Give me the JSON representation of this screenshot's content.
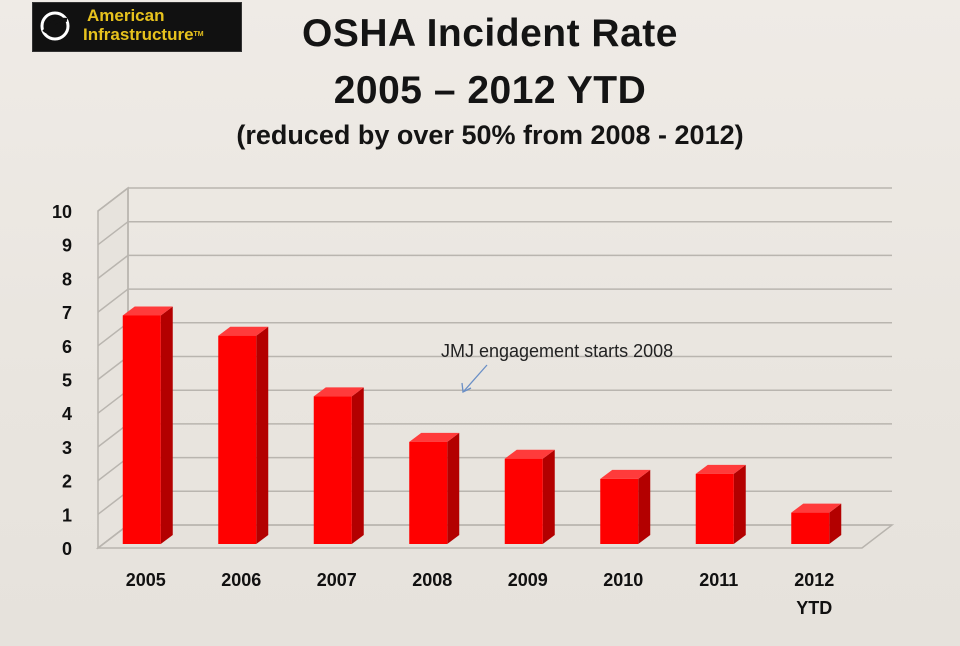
{
  "logo": {
    "line1": "American",
    "line2": "Infrastructure",
    "mark": "TM",
    "icon": "circle-swoosh-icon"
  },
  "chart_data": {
    "type": "bar",
    "title": "OSHA Incident Rate",
    "title_line2": "2005 – 2012 YTD",
    "subtitle": "(reduced by over 50% from 2008 - 2012)",
    "categories": [
      [
        "2005"
      ],
      [
        "2006"
      ],
      [
        "2007"
      ],
      [
        "2008"
      ],
      [
        "2009"
      ],
      [
        "2010"
      ],
      [
        "2011"
      ],
      [
        "2012",
        "YTD"
      ]
    ],
    "values": [
      6.9,
      6.3,
      4.5,
      3.15,
      2.65,
      2.05,
      2.2,
      1.05
    ],
    "ylim": [
      0,
      10
    ],
    "yticks": [
      "0",
      "1",
      "2",
      "3",
      "4",
      "5",
      "6",
      "7",
      "8",
      "9",
      "10"
    ],
    "grid": true,
    "bar_color": "#ff0000",
    "annotation": {
      "text": "JMJ engagement starts 2008",
      "points_to": "2008"
    }
  }
}
